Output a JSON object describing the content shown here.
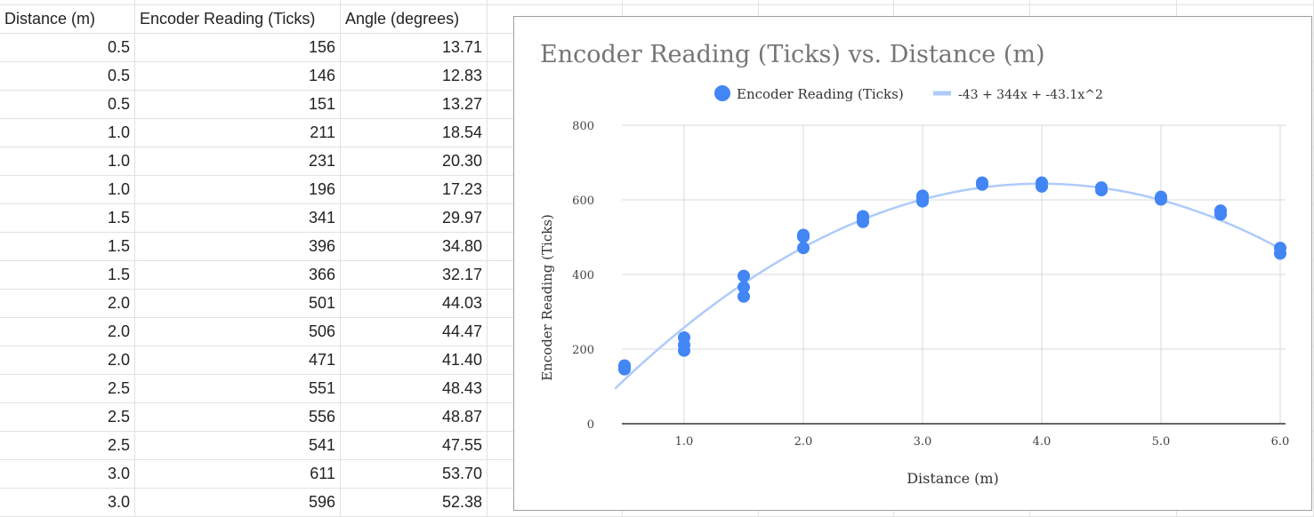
{
  "sheet": {
    "headers": [
      "Distance (m)",
      "Encoder Reading (Ticks)",
      "Angle (degrees)"
    ],
    "rows": [
      [
        "0.5",
        "156",
        "13.71"
      ],
      [
        "0.5",
        "146",
        "12.83"
      ],
      [
        "0.5",
        "151",
        "13.27"
      ],
      [
        "1.0",
        "211",
        "18.54"
      ],
      [
        "1.0",
        "231",
        "20.30"
      ],
      [
        "1.0",
        "196",
        "17.23"
      ],
      [
        "1.5",
        "341",
        "29.97"
      ],
      [
        "1.5",
        "396",
        "34.80"
      ],
      [
        "1.5",
        "366",
        "32.17"
      ],
      [
        "2.0",
        "501",
        "44.03"
      ],
      [
        "2.0",
        "506",
        "44.47"
      ],
      [
        "2.0",
        "471",
        "41.40"
      ],
      [
        "2.5",
        "551",
        "48.43"
      ],
      [
        "2.5",
        "556",
        "48.87"
      ],
      [
        "2.5",
        "541",
        "47.55"
      ],
      [
        "3.0",
        "611",
        "53.70"
      ],
      [
        "3.0",
        "596",
        "52.38"
      ]
    ]
  },
  "chart_data": {
    "type": "scatter",
    "title": "Encoder Reading (Ticks) vs. Distance (m)",
    "xlabel": "Distance (m)",
    "ylabel": "Encoder Reading (Ticks)",
    "xlim": [
      0.5,
      6.0
    ],
    "ylim": [
      0,
      800
    ],
    "xticks": [
      "1.0",
      "2.0",
      "3.0",
      "4.0",
      "5.0",
      "6.0"
    ],
    "yticks": [
      "0",
      "200",
      "400",
      "600",
      "800"
    ],
    "grid": true,
    "legend_position": "top",
    "series": [
      {
        "name": "Encoder Reading (Ticks)",
        "color": "#4285f4",
        "points": [
          [
            0.5,
            156
          ],
          [
            0.5,
            146
          ],
          [
            0.5,
            151
          ],
          [
            1.0,
            211
          ],
          [
            1.0,
            231
          ],
          [
            1.0,
            196
          ],
          [
            1.5,
            341
          ],
          [
            1.5,
            396
          ],
          [
            1.5,
            366
          ],
          [
            2.0,
            501
          ],
          [
            2.0,
            506
          ],
          [
            2.0,
            471
          ],
          [
            2.5,
            551
          ],
          [
            2.5,
            556
          ],
          [
            2.5,
            541
          ],
          [
            3.0,
            611
          ],
          [
            3.0,
            596
          ],
          [
            3.0,
            604
          ],
          [
            3.5,
            641
          ],
          [
            3.5,
            646
          ],
          [
            4.0,
            636
          ],
          [
            4.0,
            646
          ],
          [
            4.5,
            626
          ],
          [
            4.5,
            633
          ],
          [
            5.0,
            601
          ],
          [
            5.0,
            608
          ],
          [
            5.5,
            561
          ],
          [
            5.5,
            571
          ],
          [
            6.0,
            456
          ],
          [
            6.0,
            471
          ]
        ]
      }
    ],
    "trendline": {
      "name": "-43 + 344x + -43.1x^2",
      "color": "#aecbfa",
      "coefficients": [
        -43,
        344,
        -43.1
      ]
    }
  }
}
